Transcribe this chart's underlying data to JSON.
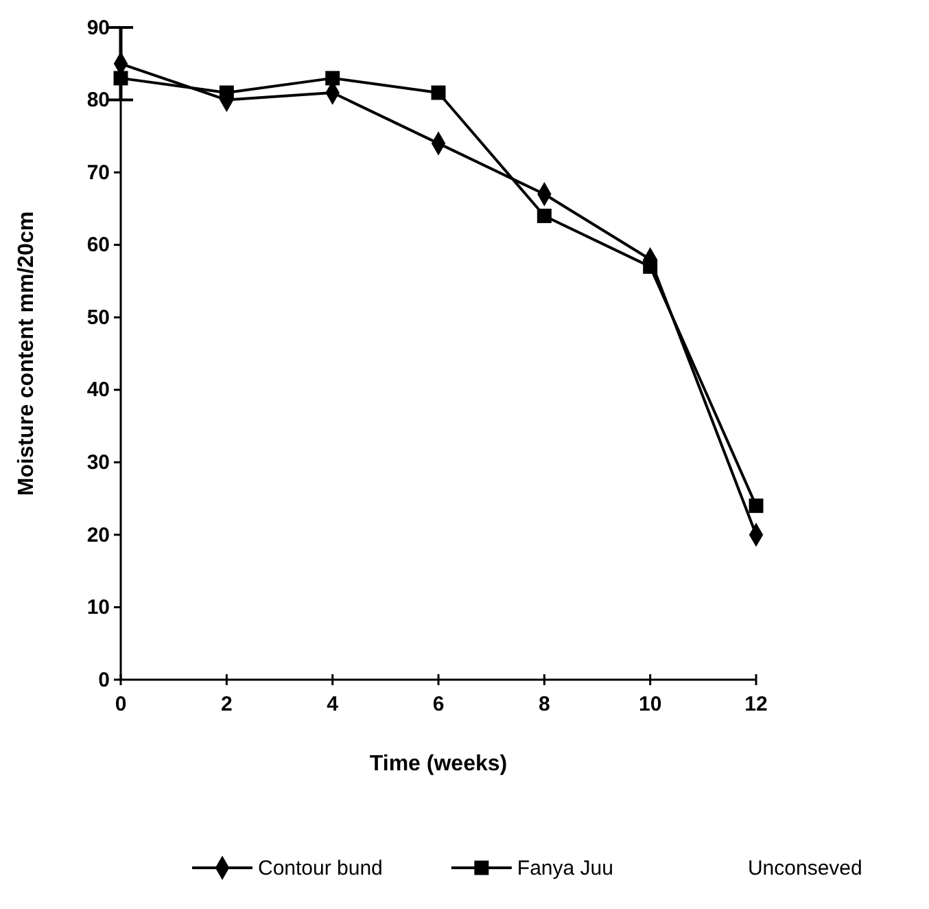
{
  "chart_data": {
    "type": "line",
    "xlabel": "Time (weeks)",
    "ylabel": "Moisture content mm/20cm",
    "x": [
      0,
      2,
      4,
      6,
      8,
      10,
      12
    ],
    "xlim": [
      0,
      12
    ],
    "xticks": [
      0,
      2,
      4,
      6,
      8,
      10,
      12
    ],
    "ylim": [
      0,
      90
    ],
    "yticks": [
      0,
      10,
      20,
      30,
      40,
      50,
      60,
      70,
      80,
      90
    ],
    "grid": false,
    "legend": "bottom",
    "line_style": "solid",
    "series": [
      {
        "name": "Contour bund",
        "color": "#000000",
        "marker": "diamond",
        "values": [
          85,
          80,
          81,
          74,
          67,
          58,
          20
        ],
        "errors": [
          5,
          null,
          null,
          null,
          null,
          null,
          null
        ]
      },
      {
        "name": "Fanya Juu",
        "color": "#000000",
        "marker": "square",
        "values": [
          83,
          81,
          83,
          81,
          64,
          57,
          24
        ]
      },
      {
        "name": "Unconseved",
        "marker": "none",
        "values": [
          null,
          null,
          null,
          null,
          null,
          null,
          null
        ]
      }
    ]
  }
}
